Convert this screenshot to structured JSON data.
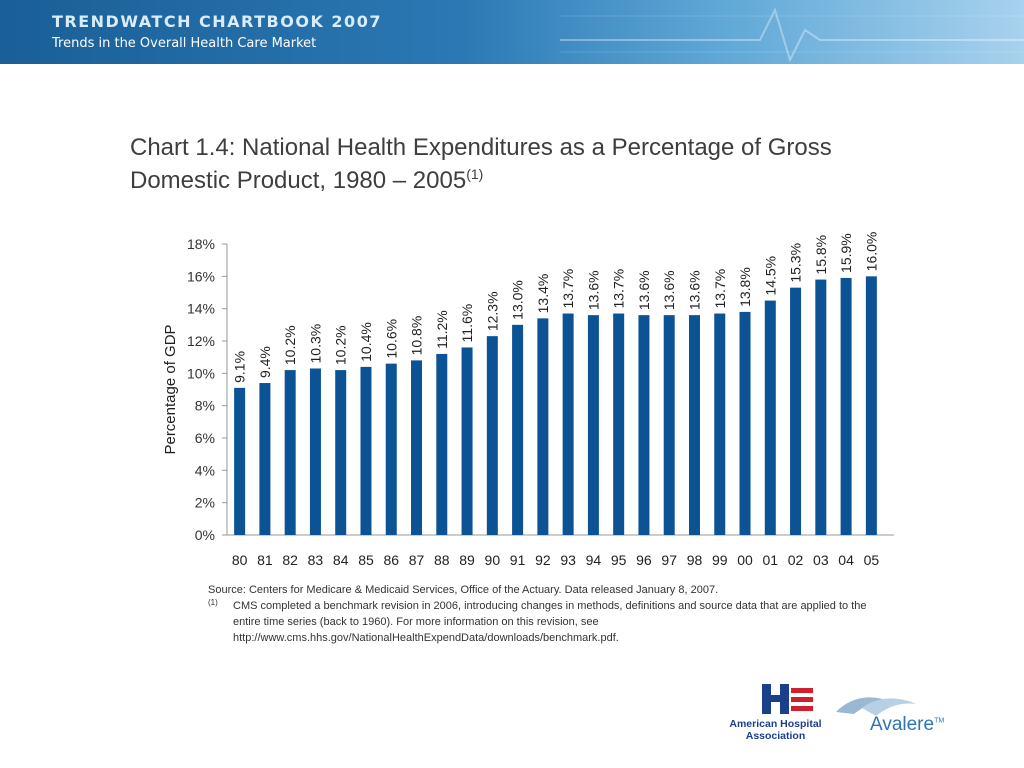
{
  "header": {
    "title": "TRENDWATCH CHARTBOOK 2007",
    "subtitle": "Trends in the Overall Health Care Market"
  },
  "chart_title": {
    "main": "Chart 1.4: National Health Expenditures as a Percentage of Gross Domestic Product, 1980 – 2005",
    "superscript": "(1)"
  },
  "chart_data": {
    "type": "bar",
    "title": "Chart 1.4: National Health Expenditures as a Percentage of Gross Domestic Product, 1980 – 2005",
    "xlabel": "",
    "ylabel": "Percentage of GDP",
    "ylim": [
      0,
      18
    ],
    "yticks": [
      "0%",
      "2%",
      "4%",
      "6%",
      "8%",
      "10%",
      "12%",
      "14%",
      "16%",
      "18%"
    ],
    "categories": [
      "80",
      "81",
      "82",
      "83",
      "84",
      "85",
      "86",
      "87",
      "88",
      "89",
      "90",
      "91",
      "92",
      "93",
      "94",
      "95",
      "96",
      "97",
      "98",
      "99",
      "00",
      "01",
      "02",
      "03",
      "04",
      "05"
    ],
    "values": [
      9.1,
      9.4,
      10.2,
      10.3,
      10.2,
      10.4,
      10.6,
      10.8,
      11.2,
      11.6,
      12.3,
      13.0,
      13.4,
      13.7,
      13.6,
      13.7,
      13.6,
      13.6,
      13.6,
      13.7,
      13.8,
      14.5,
      15.3,
      15.8,
      15.9,
      16.0
    ],
    "data_labels": [
      "9.1%",
      "9.4%",
      "10.2%",
      "10.3%",
      "10.2%",
      "10.4%",
      "10.6%",
      "10.8%",
      "11.2%",
      "11.6%",
      "12.3%",
      "13.0%",
      "13.4%",
      "13.7%",
      "13.6%",
      "13.7%",
      "13.6%",
      "13.6%",
      "13.6%",
      "13.7%",
      "13.8%",
      "14.5%",
      "15.3%",
      "15.8%",
      "15.9%",
      "16.0%"
    ],
    "bar_color": "#0b5394",
    "grid": false,
    "legend": "none"
  },
  "source": {
    "line": "Source: Centers for Medicare & Medicaid Services, Office of the Actuary.  Data released January 8, 2007.",
    "footnote_mark": "(1)",
    "footnote": "CMS completed a benchmark revision in 2006, introducing changes in methods, definitions and source data that are applied to the entire time series (back to 1960).  For more information on this revision, see http://www.cms.hhs.gov/NationalHealthExpendData/downloads/benchmark.pdf."
  },
  "logos": {
    "aha_line1": "American Hospital",
    "aha_line2": "Association",
    "avalere": "Avalere",
    "avalere_tm": "TM"
  }
}
